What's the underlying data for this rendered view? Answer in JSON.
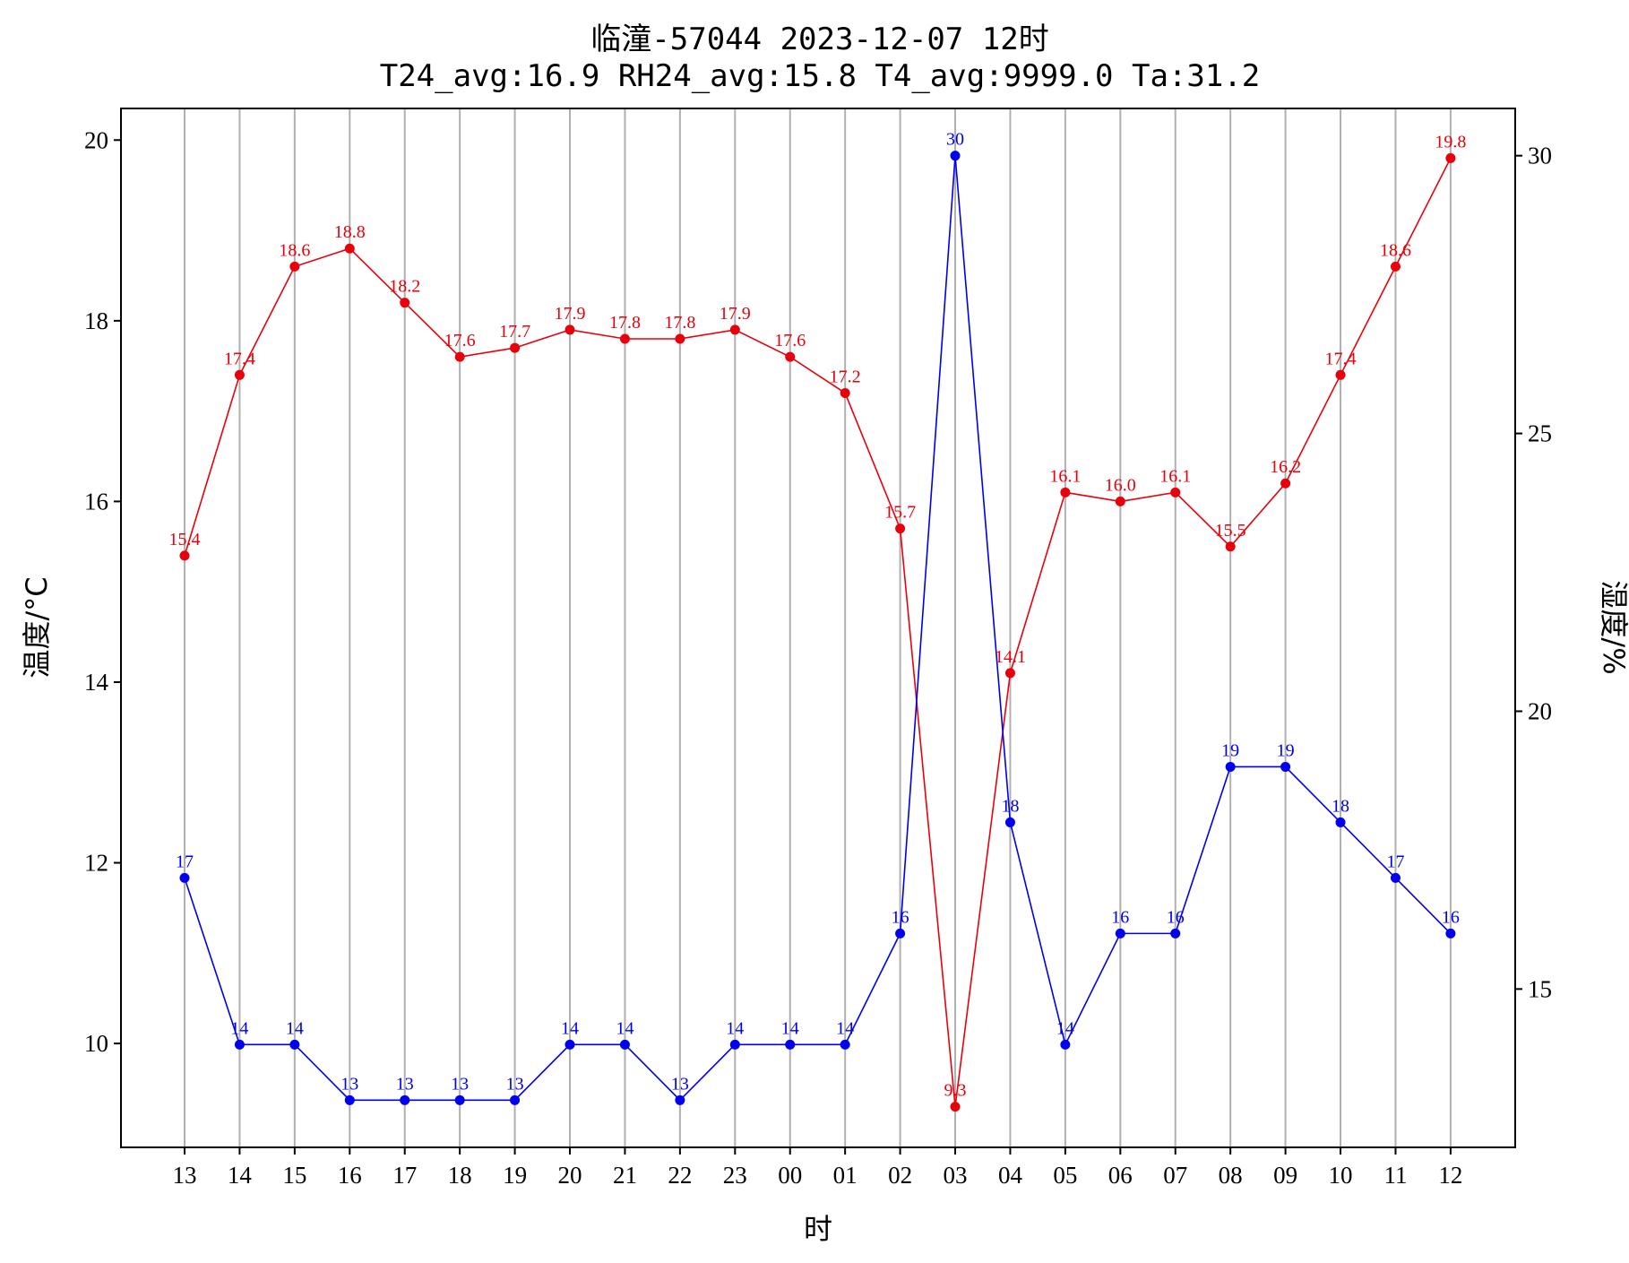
{
  "chart_data": {
    "type": "line",
    "title": "临潼-57044  2023-12-07 12时",
    "subtitle": "T24_avg:16.9  RH24_avg:15.8  T4_avg:9999.0  Ta:31.2",
    "xlabel": "时",
    "ylabel_left": "温度/°C",
    "ylabel_right": "湿度/%",
    "categories": [
      "13",
      "14",
      "15",
      "16",
      "17",
      "18",
      "19",
      "20",
      "21",
      "22",
      "23",
      "00",
      "01",
      "02",
      "03",
      "04",
      "05",
      "06",
      "07",
      "08",
      "09",
      "10",
      "11",
      "12"
    ],
    "ylim_left": [
      8.85,
      20.35
    ],
    "ylim_right": [
      12.15,
      30.85
    ],
    "yticks_left": [
      "10",
      "12",
      "14",
      "16",
      "18",
      "20"
    ],
    "yticks_right": [
      "15",
      "20",
      "25",
      "30"
    ],
    "grid": "vertical",
    "series": [
      {
        "name": "",
        "axis": "left",
        "color": "#e8000b",
        "values": [
          15.4,
          17.4,
          18.6,
          18.8,
          18.2,
          17.6,
          17.7,
          17.9,
          17.8,
          17.8,
          17.9,
          17.6,
          17.2,
          15.7,
          9.3,
          14.1,
          16.1,
          16.0,
          16.1,
          15.5,
          16.2,
          17.4,
          18.6,
          19.8
        ],
        "labels": [
          "15.4",
          "17.4",
          "18.6",
          "18.8",
          "18.2",
          "17.6",
          "17.7",
          "17.9",
          "17.8",
          "17.8",
          "17.9",
          "17.6",
          "17.2",
          "15.7",
          "9.3",
          "14.1",
          "16.1",
          "16.0",
          "16.1",
          "15.5",
          "16.2",
          "17.4",
          "18.6",
          "19.8"
        ]
      },
      {
        "name": "",
        "axis": "right",
        "color": "#0000ee",
        "values": [
          17,
          14,
          14,
          13,
          13,
          13,
          13,
          14,
          14,
          13,
          14,
          14,
          14,
          16,
          30,
          18,
          14,
          16,
          16,
          19,
          19,
          18,
          17,
          16
        ],
        "labels": [
          "17",
          "14",
          "14",
          "13",
          "13",
          "13",
          "13",
          "14",
          "14",
          "13",
          "14",
          "14",
          "14",
          "16",
          "30",
          "18",
          "14",
          "16",
          "16",
          "19",
          "19",
          "18",
          "17",
          "16"
        ]
      }
    ]
  }
}
